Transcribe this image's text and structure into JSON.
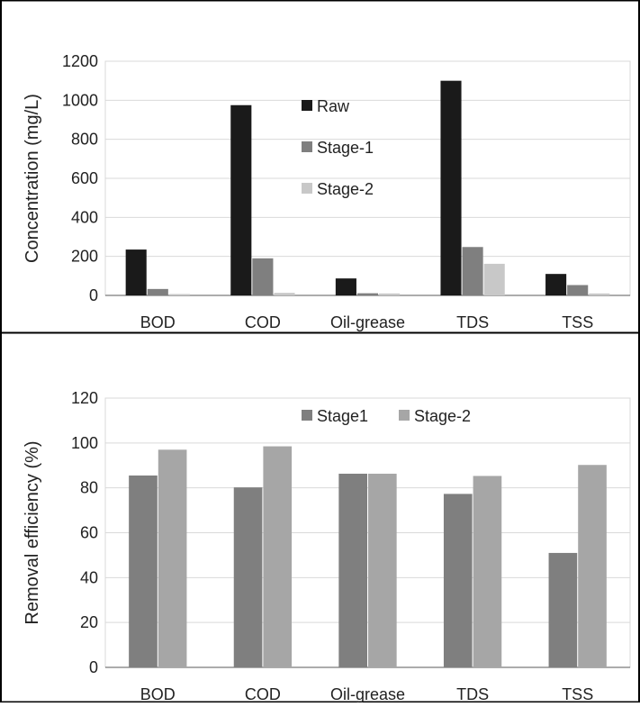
{
  "chart_data": [
    {
      "type": "bar",
      "title": "",
      "xlabel": "",
      "ylabel": "Concentration (mg/L)",
      "ylim": [
        0,
        1200
      ],
      "yticks": [
        0,
        200,
        400,
        600,
        800,
        1000,
        1200
      ],
      "grid": true,
      "legend": "inside, upper-center, vertical",
      "categories": [
        "BOD",
        "COD",
        "Oil-grease",
        "TDS",
        "TSS"
      ],
      "series": [
        {
          "name": "Raw",
          "color": "#1a1a1a",
          "values": [
            235,
            975,
            87,
            1100,
            110
          ]
        },
        {
          "name": "Stage-1",
          "color": "#7f7f7f",
          "values": [
            33,
            190,
            11,
            248,
            53
          ]
        },
        {
          "name": "Stage-2",
          "color": "#c8c8c8",
          "values": [
            7,
            13,
            10,
            162,
            10
          ]
        }
      ]
    },
    {
      "type": "bar",
      "title": "",
      "xlabel": "",
      "ylabel": "Removal efficiency (%)",
      "ylim": [
        0,
        120
      ],
      "yticks": [
        0,
        20,
        40,
        60,
        80,
        100,
        120
      ],
      "grid": true,
      "legend": "inside, top-center, horizontal",
      "categories": [
        "BOD",
        "COD",
        "Oil-grease",
        "TDS",
        "TSS"
      ],
      "series": [
        {
          "name": "Stage1",
          "color": "#7f7f7f",
          "values": [
            85.5,
            80.2,
            86.3,
            77.3,
            51
          ]
        },
        {
          "name": "Stage-2",
          "color": "#a6a6a6",
          "values": [
            97,
            98.5,
            86.3,
            85.3,
            90.2
          ]
        }
      ]
    }
  ]
}
